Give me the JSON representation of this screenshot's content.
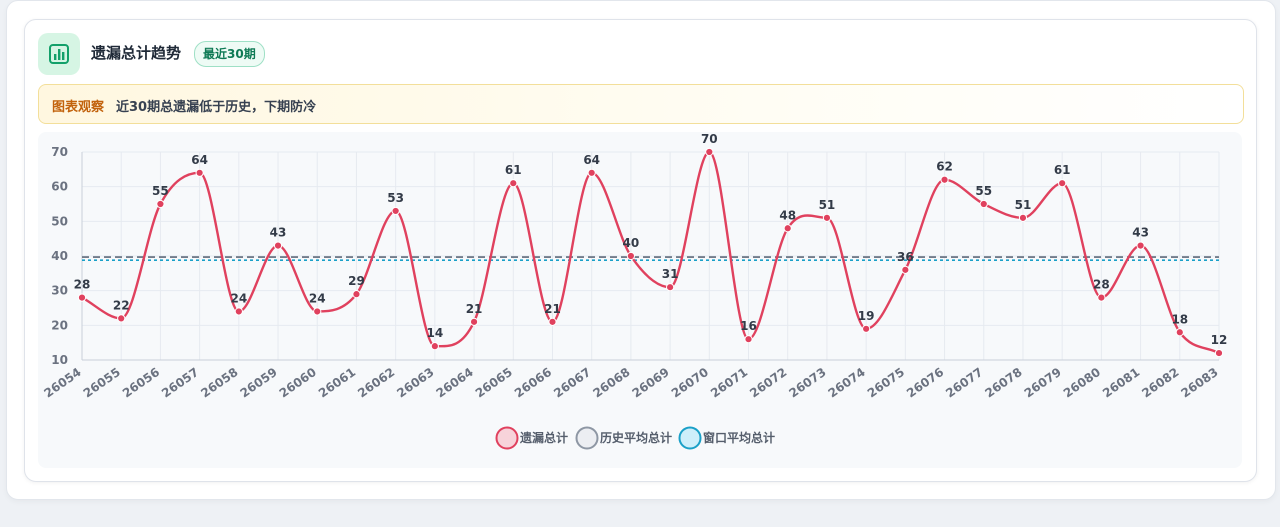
{
  "header": {
    "title": "遗漏总计趋势",
    "badge": "最近30期",
    "icon": "bar-chart-icon"
  },
  "insight": {
    "tag": "图表观察",
    "text": "近30期总遗漏低于历史，下期防冷"
  },
  "colors": {
    "series": "#e0415e",
    "history_avg": "#5f6b7a",
    "window_avg": "#1aa0c8",
    "accent_green": "#13a06a"
  },
  "chart_data": {
    "type": "line",
    "x": [
      "26054",
      "26055",
      "26056",
      "26057",
      "26058",
      "26059",
      "26060",
      "26061",
      "26062",
      "26063",
      "26064",
      "26065",
      "26066",
      "26067",
      "26068",
      "26069",
      "26070",
      "26071",
      "26072",
      "26073",
      "26074",
      "26075",
      "26076",
      "26077",
      "26078",
      "26079",
      "26080",
      "26081",
      "26082",
      "26083"
    ],
    "series": [
      {
        "name": "遗漏总计",
        "values": [
          28,
          22,
          55,
          64,
          24,
          43,
          24,
          29,
          53,
          14,
          21,
          61,
          21,
          64,
          40,
          31,
          70,
          16,
          48,
          51,
          19,
          36,
          62,
          55,
          51,
          61,
          28,
          43,
          18,
          12
        ]
      }
    ],
    "reference_lines": [
      {
        "name": "历史平均总计",
        "style": "dashed"
      },
      {
        "name": "窗口平均总计",
        "style": "dotted"
      }
    ],
    "ylim": [
      10,
      70
    ],
    "yticks": [
      10,
      20,
      30,
      40,
      50,
      60,
      70
    ],
    "grid": true,
    "legend_position": "bottom-center",
    "legend": [
      "遗漏总计",
      "历史平均总计",
      "窗口平均总计"
    ]
  }
}
